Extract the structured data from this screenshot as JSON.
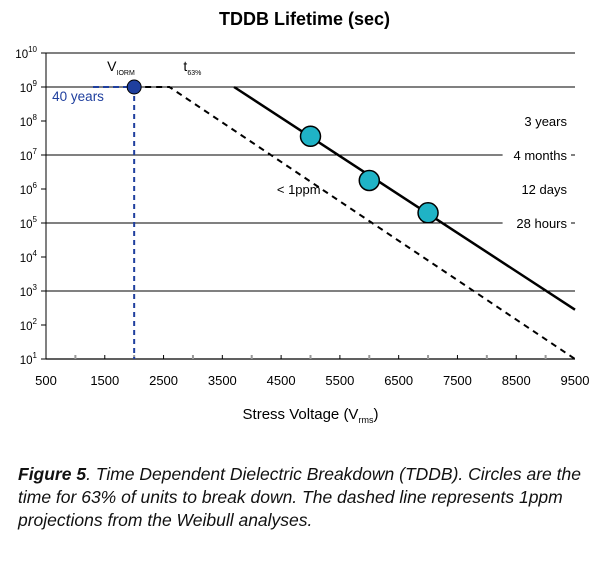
{
  "chart_data": {
    "type": "scatter",
    "title": "TDDB Lifetime (sec)",
    "xlabel": {
      "main": "Stress Voltage (V",
      "sub": "rms",
      "close": ")"
    },
    "x_ticks": [
      "500",
      "1500",
      "2500",
      "3500",
      "4500",
      "5500",
      "6500",
      "7500",
      "8500",
      "9500"
    ],
    "xlim": [
      500,
      9500
    ],
    "y_scale": "log",
    "ylim_exponent": [
      1,
      10
    ],
    "y_ticks": [
      {
        "base": "10",
        "exp": "10"
      },
      {
        "base": "10",
        "exp": "9"
      },
      {
        "base": "10",
        "exp": "8"
      },
      {
        "base": "10",
        "exp": "7"
      },
      {
        "base": "10",
        "exp": "6"
      },
      {
        "base": "10",
        "exp": "5"
      },
      {
        "base": "10",
        "exp": "4"
      },
      {
        "base": "10",
        "exp": "3"
      },
      {
        "base": "10",
        "exp": "2"
      },
      {
        "base": "10",
        "exp": "1"
      }
    ],
    "horizontal_lines_exponent": [
      9,
      7,
      5,
      3
    ],
    "reference_labels": [
      {
        "text": "3 years",
        "exp": 8
      },
      {
        "text": "4 months",
        "exp": 7
      },
      {
        "text": "12 days",
        "exp": 6
      },
      {
        "text": "28 hours",
        "exp": 5
      }
    ],
    "points_t63": [
      {
        "x": 5000,
        "exp": 7.55
      },
      {
        "x": 6000,
        "exp": 6.25
      },
      {
        "x": 7000,
        "exp": 5.3
      }
    ],
    "t63_line": [
      {
        "x": 3700,
        "exp": 9
      },
      {
        "x": 9500,
        "exp": 2.45
      }
    ],
    "ppm_dashed_line": [
      {
        "x": 2000,
        "exp": 9
      },
      {
        "x": 2600,
        "exp": 9
      },
      {
        "x": 9500,
        "exp": 1
      }
    ],
    "viorm": {
      "x": 2000,
      "exp": 9,
      "line_start_x": 1300
    },
    "annotations": {
      "viorm": {
        "main": "V",
        "sub": "IORM"
      },
      "t63": {
        "main": "t",
        "sub": "63%"
      },
      "years_40": "40 years",
      "ppm": "< 1ppm"
    },
    "colors": {
      "points": "#1fb3c6",
      "viorm": "#1f3f9e",
      "lines": "#000000",
      "minor_ticks": "#999999"
    }
  },
  "caption": {
    "label": "Figure 5",
    "text": ". Time Dependent Dielectric Breakdown (TDDB). Circles are the time for 63% of units to break down. The dashed line represents 1ppm projections from the Weibull analyses."
  }
}
